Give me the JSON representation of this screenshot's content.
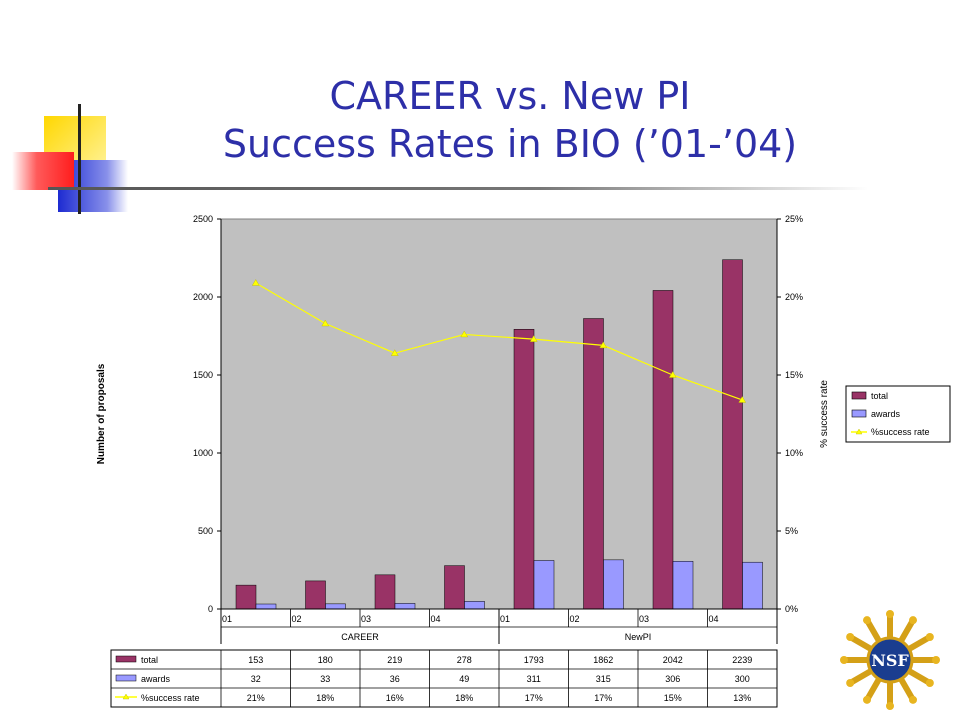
{
  "slide": {
    "title_line1": "CAREER vs. New PI",
    "title_line2": "Success Rates in BIO (’01-’04)"
  },
  "logo": {
    "text": "NSF"
  },
  "colors": {
    "title": "#2d2fa8",
    "plot_bg": "#c0c0c0",
    "total": "#993366",
    "awards": "#9999ff",
    "rate": "#ffff00"
  },
  "chart_data": {
    "type": "bar",
    "groups": [
      "CAREER",
      "NewPI"
    ],
    "categories": [
      "01",
      "02",
      "03",
      "04",
      "01",
      "02",
      "03",
      "04"
    ],
    "series": [
      {
        "name": "total",
        "values": [
          153,
          180,
          219,
          278,
          1793,
          1862,
          2042,
          2239
        ]
      },
      {
        "name": "awards",
        "values": [
          32,
          33,
          36,
          49,
          311,
          315,
          306,
          300
        ]
      },
      {
        "name": "%success rate",
        "type": "line",
        "axis": "secondary",
        "values": [
          21,
          18,
          16,
          18,
          17,
          17,
          15,
          13
        ],
        "plotted_values": [
          20.9,
          18.3,
          16.4,
          17.6,
          17.3,
          16.9,
          15.0,
          13.4
        ]
      }
    ],
    "ylabel": "Number of proposals",
    "y2label": "% success rate",
    "ylim": [
      0,
      2500
    ],
    "yticks": [
      0,
      500,
      1000,
      1500,
      2000,
      2500
    ],
    "y2lim": [
      0,
      25
    ],
    "y2ticks": [
      "0%",
      "5%",
      "10%",
      "15%",
      "20%",
      "25%"
    ],
    "data_table_rate_labels": [
      "21%",
      "18%",
      "16%",
      "18%",
      "17%",
      "17%",
      "15%",
      "13%"
    ],
    "legend_position": "right",
    "grid": false
  }
}
